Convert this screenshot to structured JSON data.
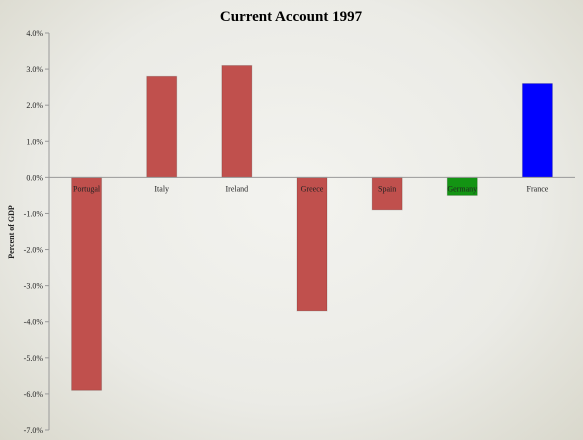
{
  "chart_data": {
    "type": "bar",
    "title": "Current Account 1997",
    "ylabel": "Percent of GDP",
    "xlabel": "",
    "categories": [
      "Portugal",
      "Italy",
      "Ireland",
      "Greece",
      "Spain",
      "Germany",
      "France"
    ],
    "values": [
      -5.9,
      2.8,
      3.1,
      -3.7,
      -0.9,
      -0.5,
      2.6
    ],
    "bar_colors": [
      "#c0504d",
      "#c0504d",
      "#c0504d",
      "#c0504d",
      "#c0504d",
      "#139413",
      "#0000ff"
    ],
    "ylim": [
      -7.0,
      4.0
    ],
    "yticks": [
      4.0,
      3.0,
      2.0,
      1.0,
      0.0,
      -1.0,
      -2.0,
      -3.0,
      -4.0,
      -5.0,
      -6.0,
      -7.0
    ],
    "ytick_labels": [
      "4.0%",
      "3.0%",
      "2.0%",
      "1.0%",
      "0.0%",
      "-1.0%",
      "-2.0%",
      "-3.0%",
      "-4.0%",
      "-5.0%",
      "-6.0%",
      "-7.0%"
    ],
    "grid": false,
    "legend": "none"
  }
}
